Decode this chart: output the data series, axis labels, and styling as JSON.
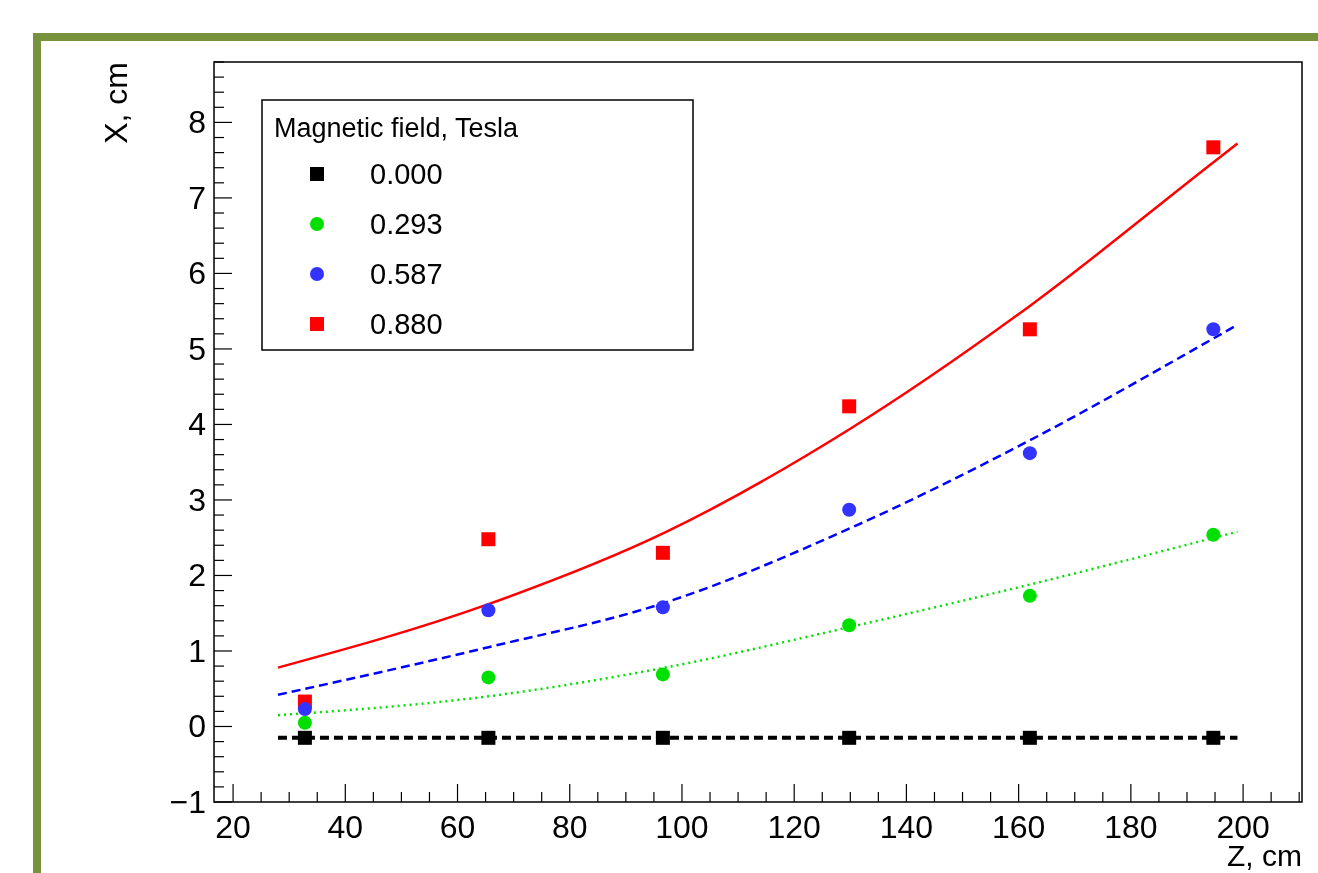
{
  "chart_data": {
    "type": "scatter",
    "xlabel": "Z, cm",
    "ylabel": "X, cm",
    "legend_title": "Magnetic field, Tesla",
    "legend": "top left",
    "xlim": [
      16.6,
      210.5
    ],
    "ylim": [
      -1,
      8.8
    ],
    "xticks": [
      20,
      {
        "value": 25,
        "label": null
      },
      {
        "value": 30,
        "label": null
      },
      {
        "value": 35,
        "label": null
      },
      40,
      {
        "value": 45,
        "label": null
      },
      {
        "value": 50,
        "label": null
      },
      {
        "value": 55,
        "label": null
      },
      60,
      {
        "value": 65,
        "label": null
      },
      {
        "value": 70,
        "label": null
      },
      {
        "value": 75,
        "label": null
      },
      80,
      {
        "value": 85,
        "label": null
      },
      {
        "value": 90,
        "label": null
      },
      {
        "value": 95,
        "label": null
      },
      100,
      {
        "value": 105,
        "label": null
      },
      {
        "value": 110,
        "label": null
      },
      {
        "value": 115,
        "label": null
      },
      120,
      {
        "value": 125,
        "label": null
      },
      {
        "value": 130,
        "label": null
      },
      {
        "value": 135,
        "label": null
      },
      140,
      {
        "value": 145,
        "label": null
      },
      {
        "value": 150,
        "label": null
      },
      {
        "value": 155,
        "label": null
      },
      160,
      {
        "value": 165,
        "label": null
      },
      {
        "value": 170,
        "label": null
      },
      {
        "value": 175,
        "label": null
      },
      180,
      {
        "value": 185,
        "label": null
      },
      {
        "value": 190,
        "label": null
      },
      {
        "value": 195,
        "label": null
      },
      200,
      {
        "value": 205,
        "label": null
      },
      {
        "value": 210,
        "label": null
      }
    ],
    "yticks": [
      {
        "value": -1,
        "label": "−1"
      },
      {
        "value": -0.8,
        "label": null
      },
      {
        "value": -0.6,
        "label": null
      },
      {
        "value": -0.4,
        "label": null
      },
      {
        "value": -0.2,
        "label": null
      },
      0,
      {
        "value": 0.2,
        "label": null
      },
      {
        "value": 0.4,
        "label": null
      },
      {
        "value": 0.6,
        "label": null
      },
      {
        "value": 0.8,
        "label": null
      },
      1,
      {
        "value": 1.2,
        "label": null
      },
      {
        "value": 1.4,
        "label": null
      },
      {
        "value": 1.6,
        "label": null
      },
      {
        "value": 1.8,
        "label": null
      },
      2,
      {
        "value": 2.2,
        "label": null
      },
      {
        "value": 2.4,
        "label": null
      },
      {
        "value": 2.6,
        "label": null
      },
      {
        "value": 2.8,
        "label": null
      },
      3,
      {
        "value": 3.2,
        "label": null
      },
      {
        "value": 3.4,
        "label": null
      },
      {
        "value": 3.6,
        "label": null
      },
      {
        "value": 3.8,
        "label": null
      },
      4,
      {
        "value": 4.2,
        "label": null
      },
      {
        "value": 4.4,
        "label": null
      },
      {
        "value": 4.6,
        "label": null
      },
      {
        "value": 4.8,
        "label": null
      },
      5,
      {
        "value": 5.2,
        "label": null
      },
      {
        "value": 5.4,
        "label": null
      },
      {
        "value": 5.6,
        "label": null
      },
      {
        "value": 5.8,
        "label": null
      },
      6,
      {
        "value": 6.2,
        "label": null
      },
      {
        "value": 6.4,
        "label": null
      },
      {
        "value": 6.6,
        "label": null
      },
      {
        "value": 6.8,
        "label": null
      },
      7,
      {
        "value": 7.2,
        "label": null
      },
      {
        "value": 7.4,
        "label": null
      },
      {
        "value": 7.6,
        "label": null
      },
      {
        "value": 7.8,
        "label": null
      },
      8,
      {
        "value": 8.2,
        "label": null
      },
      {
        "value": 8.4,
        "label": null
      },
      {
        "value": 8.6,
        "label": null
      },
      {
        "value": 8.8,
        "label": null
      }
    ],
    "x": [
      32.8,
      65.5,
      96.6,
      129.8,
      162,
      194.7
    ],
    "series": [
      {
        "name": "0.000",
        "color": "#000000",
        "marker": "square",
        "values": [
          -0.15,
          -0.15,
          -0.15,
          -0.15,
          -0.15,
          -0.15
        ]
      },
      {
        "name": "0.293",
        "color": "#00e000",
        "marker": "circle",
        "values": [
          0.05,
          0.65,
          0.69,
          1.34,
          1.73,
          2.54
        ]
      },
      {
        "name": "0.587",
        "color": "#3333ff",
        "marker": "circle",
        "values": [
          0.23,
          1.54,
          1.58,
          2.87,
          3.62,
          5.26
        ]
      },
      {
        "name": "0.880",
        "color": "#ff0000",
        "marker": "square",
        "values": [
          0.33,
          2.48,
          2.3,
          4.24,
          5.26,
          7.67
        ]
      },
      {
        "type": "line",
        "color": "#000000",
        "line_style": "dashed",
        "x": [
          28,
          199
        ],
        "values": [
          -0.15,
          -0.15
        ]
      },
      {
        "type": "line",
        "color": "#00e000",
        "line_style": "dotted",
        "x": [
          28,
          65.5,
          97,
          129.5,
          162,
          199
        ],
        "values": [
          0.15,
          0.4,
          0.78,
          1.31,
          1.88,
          2.58
        ]
      },
      {
        "type": "line",
        "color": "#0000ff",
        "line_style": "dashed",
        "x": [
          28,
          65.5,
          97,
          129.5,
          162,
          194.5,
          199
        ],
        "values": [
          0.42,
          1.05,
          1.64,
          2.61,
          3.79,
          5.13,
          5.32
        ]
      },
      {
        "type": "line",
        "color": "#ff0000",
        "line_style": "solid",
        "x": [
          28,
          65.5,
          97,
          129.5,
          162,
          194.5,
          199
        ],
        "values": [
          0.78,
          1.62,
          2.57,
          3.92,
          5.57,
          7.46,
          7.72
        ]
      }
    ]
  }
}
